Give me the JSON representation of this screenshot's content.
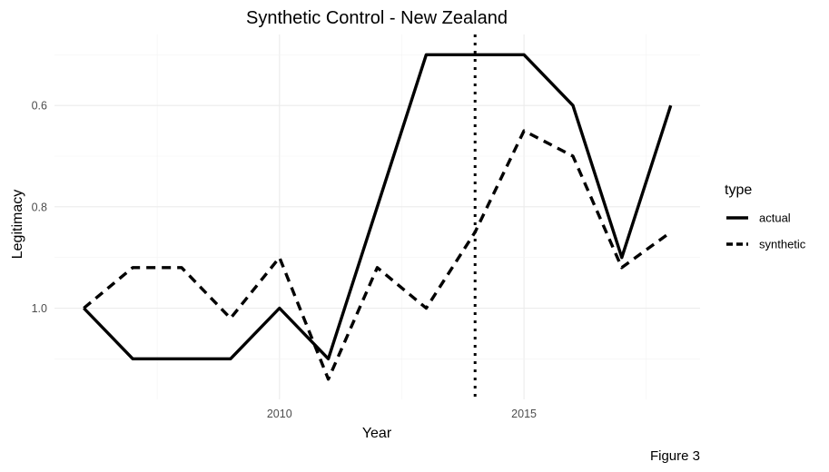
{
  "chart_data": {
    "type": "line",
    "title": "Synthetic Control - New Zealand",
    "xlabel": "Year",
    "ylabel": "Legitimacy",
    "caption": "Figure 3",
    "x": [
      2006,
      2007,
      2008,
      2009,
      2010,
      2011,
      2012,
      2013,
      2014,
      2015,
      2016,
      2017,
      2018
    ],
    "series": [
      {
        "name": "actual",
        "line_style": "solid",
        "color": "#000000",
        "values": [
          1.0,
          1.1,
          1.1,
          1.1,
          1.0,
          1.1,
          0.8,
          0.5,
          0.5,
          0.5,
          0.6,
          0.9,
          0.6
        ]
      },
      {
        "name": "synthetic",
        "line_style": "dashed",
        "color": "#000000",
        "values": [
          1.0,
          0.92,
          0.92,
          1.02,
          0.9,
          1.14,
          0.92,
          1.0,
          0.85,
          0.65,
          0.7,
          0.92,
          0.85
        ]
      }
    ],
    "xlim": [
      2005.4,
      2018.6
    ],
    "ylim": [
      1.18,
      0.46
    ],
    "y_reversed": true,
    "x_ticks": [
      2010,
      2015
    ],
    "y_ticks": [
      0.6,
      0.8,
      1.0
    ],
    "y_tick_labels": [
      "0.6",
      "0.8",
      "1.0"
    ],
    "vertical_line": {
      "x": 2014,
      "style": "dotted",
      "color": "#000000"
    },
    "grid": true,
    "legend": {
      "title": "type",
      "position": "right",
      "entries": [
        "actual",
        "synthetic"
      ]
    }
  }
}
